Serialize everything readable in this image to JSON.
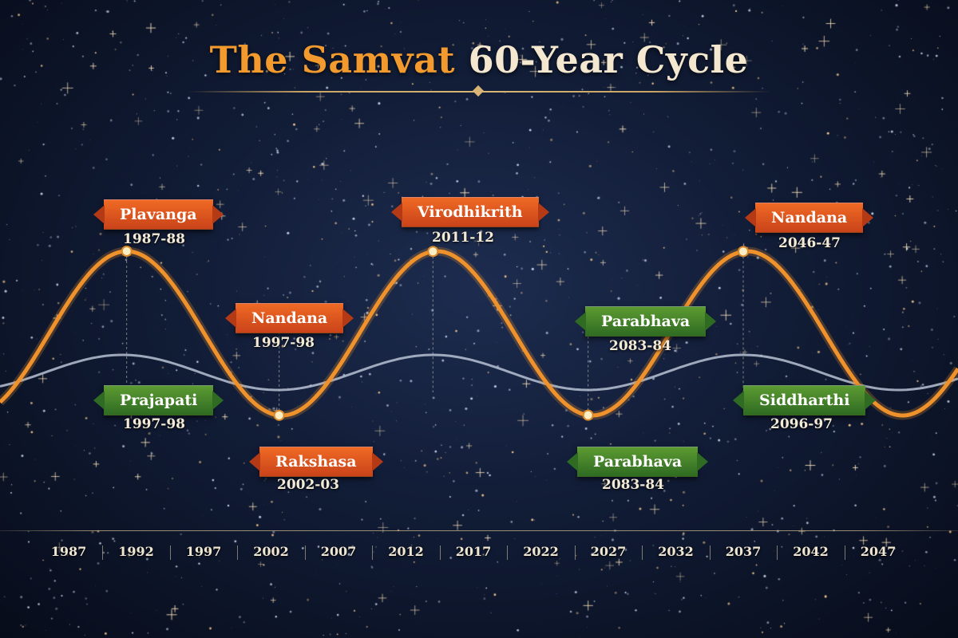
{
  "title": {
    "accent": "The Samvat",
    "rest": "60-Year Cycle"
  },
  "colors": {
    "orange_curve": "#f0922c",
    "silver_curve": "#b9c2d3",
    "orange_banner": "#e05a20",
    "green_banner": "#4a862b",
    "marker": "#fbeec4"
  },
  "chart_data": {
    "type": "line",
    "x_ticks": [
      "1987",
      "1992",
      "1997",
      "2002",
      "2007",
      "2012",
      "2017",
      "2022",
      "2027",
      "2032",
      "2037",
      "2042",
      "2047"
    ],
    "series": [
      {
        "role": "primary cycle",
        "period_years": 23,
        "peaks_at_years": [
          1991.3,
          2014.0,
          2037.0
        ],
        "troughs_at_years": [
          2002.6,
          2025.5
        ]
      },
      {
        "role": "secondary cycle",
        "period_years": 23,
        "peaks_at_years": [
          2014.0,
          2037.0
        ],
        "troughs_at_years": [
          2002.6,
          2025.5
        ]
      }
    ],
    "labels": [
      {
        "name": "Plavanga",
        "years": "1987-88",
        "color": "orange"
      },
      {
        "name": "Virodhikrith",
        "years": "2011-12",
        "color": "orange"
      },
      {
        "name": "Nandana",
        "years": "2046-47",
        "color": "orange"
      },
      {
        "name": "Nandana",
        "years": "1997-98",
        "color": "orange"
      },
      {
        "name": "Rakshasa",
        "years": "2002-03",
        "color": "orange"
      },
      {
        "name": "Prajapati",
        "years": "1997-98",
        "color": "green"
      },
      {
        "name": "Parabhava",
        "years": "2083-84",
        "color": "green"
      },
      {
        "name": "Parabhava",
        "years": "2083-84",
        "color": "green"
      },
      {
        "name": "Siddharthi",
        "years": "2096-97",
        "color": "green"
      }
    ]
  }
}
